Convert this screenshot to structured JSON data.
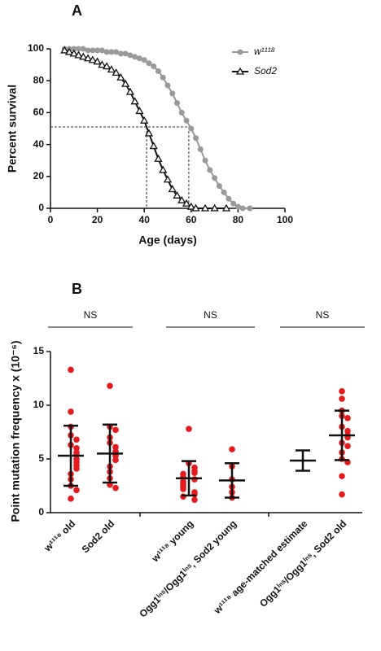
{
  "chart_data": [
    {
      "type": "line",
      "panel_label": "A",
      "xlabel": "Age (days)",
      "ylabel": "Percent survival",
      "xlim": [
        0,
        100
      ],
      "xticks": [
        0,
        20,
        40,
        60,
        80,
        100
      ],
      "ylim": [
        0,
        100
      ],
      "yticks": [
        0,
        20,
        40,
        60,
        80,
        100
      ],
      "reference_lines": {
        "y": 51,
        "x": [
          41,
          59
        ]
      },
      "series": [
        {
          "name": "w¹¹¹⁸",
          "color": "#999999",
          "marker": "circle",
          "x": [
            6,
            8,
            10,
            12,
            14,
            16,
            18,
            20,
            22,
            24,
            26,
            28,
            30,
            32,
            34,
            36,
            38,
            40,
            42,
            44,
            46,
            48,
            50,
            52,
            54,
            56,
            58,
            60,
            62,
            64,
            66,
            68,
            70,
            72,
            74,
            76,
            78,
            80,
            82,
            85
          ],
          "values": [
            100,
            100,
            100,
            100,
            100,
            99,
            99,
            99,
            99,
            98,
            98,
            98,
            97,
            97,
            96,
            95,
            94,
            93,
            91,
            89,
            86,
            82,
            77,
            72,
            66,
            60,
            55,
            50,
            44,
            37,
            30,
            24,
            19,
            14,
            10,
            6,
            3,
            1,
            0,
            0
          ]
        },
        {
          "name": "Sod2",
          "color": "#111111",
          "marker": "triangle",
          "x": [
            6,
            8,
            10,
            12,
            14,
            16,
            18,
            20,
            22,
            24,
            26,
            28,
            30,
            32,
            34,
            36,
            38,
            40,
            42,
            44,
            46,
            48,
            50,
            52,
            54,
            56,
            58,
            60,
            62,
            66,
            70,
            75
          ],
          "values": [
            99,
            98,
            97,
            96,
            95,
            94,
            93,
            92,
            90,
            89,
            87,
            85,
            82,
            78,
            73,
            67,
            61,
            55,
            47,
            39,
            31,
            24,
            18,
            12,
            8,
            5,
            3,
            1,
            0,
            0,
            0,
            0
          ]
        }
      ]
    },
    {
      "type": "dot_plot",
      "panel_label": "B",
      "ylabel": "Point mutation frequency x (10⁻⁶)",
      "ylim": [
        0,
        15
      ],
      "yticks": [
        0,
        5,
        10,
        15
      ],
      "color": "#e41a1c",
      "annotations": [
        "NS",
        "NS",
        "NS"
      ],
      "groups": [
        {
          "category": "w¹¹¹⁸ old",
          "values": [
            13.3,
            9.4,
            8.0,
            7.2,
            6.8,
            6.3,
            6.0,
            5.6,
            5.4,
            5.0,
            4.7,
            4.4,
            4.1,
            3.6,
            3.1,
            2.5,
            2.1,
            1.3
          ],
          "mean": 5.3,
          "sd": 2.8
        },
        {
          "category": "Sod2 old",
          "values": [
            11.8,
            8.0,
            7.7,
            7.0,
            6.5,
            6.1,
            5.7,
            5.3,
            4.9,
            4.3,
            3.8,
            3.2,
            2.6,
            2.3
          ],
          "mean": 5.5,
          "sd": 2.7
        },
        {
          "category": "w¹¹¹⁸ young",
          "values": [
            7.8,
            4.6,
            4.2,
            3.9,
            3.7,
            3.6,
            3.3,
            3.1,
            2.9,
            2.8,
            2.6,
            2.4,
            2.2,
            1.9,
            1.7,
            1.5,
            1.2
          ],
          "mean": 3.2,
          "sd": 1.6
        },
        {
          "category": "Ogg1ⁱⁿˢ/Ogg1ⁱⁿˢ, Sod2 young",
          "values": [
            5.9,
            4.3,
            3.1,
            2.4,
            1.9,
            1.4
          ],
          "mean": 3.0,
          "sd": 1.6
        },
        {
          "category": "w¹¹¹⁸ age-matched estimate",
          "values": [],
          "mean": 4.85,
          "sd": 0.95
        },
        {
          "category": "Ogg1ⁱⁿˢ/Ogg1ⁱⁿˢ, Sod2 old",
          "values": [
            11.3,
            10.6,
            9.5,
            9.0,
            8.8,
            8.0,
            7.6,
            7.2,
            7.0,
            6.5,
            6.2,
            5.6,
            5.0,
            4.7,
            3.4,
            1.7
          ],
          "mean": 7.2,
          "sd": 2.3
        }
      ]
    }
  ]
}
